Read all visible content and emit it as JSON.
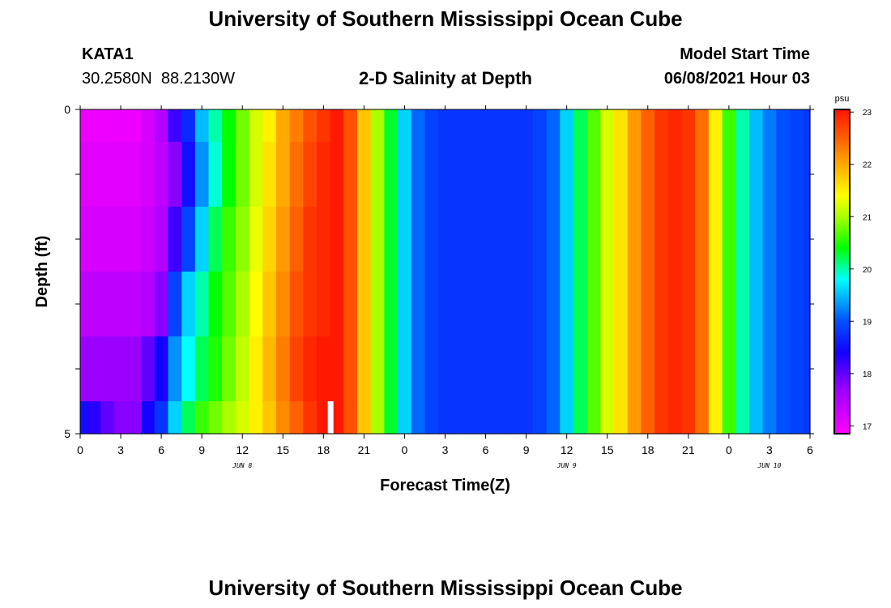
{
  "header": {
    "title": "University of Southern Mississippi Ocean Cube",
    "station": "KATA1",
    "coords": "30.2580N  88.2130W",
    "subtitle": "2-D Salinity at Depth",
    "model_label": "Model Start Time",
    "model_time": "06/08/2021 Hour 03"
  },
  "footer": {
    "title": "University of Southern Mississippi Ocean Cube"
  },
  "chart_data": {
    "type": "heatmap",
    "title": "2-D Salinity at Depth",
    "xlabel": "Forecast Time(Z)",
    "ylabel": "Depth (ft)",
    "x_start_hour": 0,
    "x_end_hour": 54,
    "x_step_hours": 1,
    "x_ticks": [
      {
        "h": 0,
        "label": "0"
      },
      {
        "h": 3,
        "label": "3"
      },
      {
        "h": 6,
        "label": "6"
      },
      {
        "h": 9,
        "label": "9"
      },
      {
        "h": 12,
        "label": "12"
      },
      {
        "h": 15,
        "label": "15"
      },
      {
        "h": 18,
        "label": "18"
      },
      {
        "h": 21,
        "label": "21"
      },
      {
        "h": 24,
        "label": "0"
      },
      {
        "h": 27,
        "label": "3"
      },
      {
        "h": 30,
        "label": "6"
      },
      {
        "h": 33,
        "label": "9"
      },
      {
        "h": 36,
        "label": "12"
      },
      {
        "h": 39,
        "label": "15"
      },
      {
        "h": 42,
        "label": "18"
      },
      {
        "h": 45,
        "label": "21"
      },
      {
        "h": 48,
        "label": "0"
      },
      {
        "h": 51,
        "label": "3"
      },
      {
        "h": 54,
        "label": "6"
      }
    ],
    "date_labels": [
      {
        "h": 12,
        "label": "JUN 8"
      },
      {
        "h": 36,
        "label": "JUN 9"
      },
      {
        "h": 51,
        "label": "JUN 10"
      }
    ],
    "ylim": [
      0,
      5
    ],
    "y_tick_labels": [
      {
        "v": 0,
        "label": "0"
      },
      {
        "v": 5,
        "label": "5"
      }
    ],
    "y_ticks_minor": [
      1,
      2,
      3,
      4
    ],
    "depth_rows": [
      0,
      1,
      2,
      3,
      4,
      5
    ],
    "row_boundaries": [
      0,
      0.5,
      1.5,
      2.5,
      3.5,
      4.5,
      5
    ],
    "salinity_psu": [
      [
        17.0,
        17.0,
        17.0,
        17.0,
        17.0,
        17.2,
        17.5,
        18.2,
        18.7,
        19.5,
        20.0,
        20.4,
        20.8,
        21.2,
        21.5,
        22.0,
        22.3,
        22.6,
        22.8,
        23.0,
        22.6,
        21.8,
        21.0,
        20.3,
        19.6,
        19.1,
        18.9,
        18.8,
        18.8,
        18.8,
        18.8,
        18.8,
        18.8,
        18.8,
        18.9,
        19.1,
        19.6,
        20.2,
        20.7,
        21.2,
        21.6,
        22.1,
        22.5,
        22.8,
        22.9,
        22.8,
        22.4,
        21.5,
        20.6,
        20.0,
        19.5,
        19.2,
        19.0,
        18.9,
        18.8
      ],
      [
        17.1,
        17.1,
        17.1,
        17.1,
        17.1,
        17.2,
        17.4,
        17.8,
        18.5,
        19.3,
        19.9,
        20.4,
        20.8,
        21.2,
        21.6,
        22.0,
        22.4,
        22.7,
        22.9,
        23.0,
        22.6,
        21.8,
        21.0,
        20.3,
        19.6,
        19.1,
        18.9,
        18.8,
        18.8,
        18.8,
        18.8,
        18.8,
        18.8,
        18.8,
        18.9,
        19.1,
        19.6,
        20.2,
        20.7,
        21.2,
        21.6,
        22.1,
        22.5,
        22.8,
        22.9,
        22.8,
        22.4,
        21.5,
        20.6,
        20.0,
        19.5,
        19.2,
        19.0,
        18.9,
        18.8
      ],
      [
        17.2,
        17.2,
        17.2,
        17.2,
        17.2,
        17.3,
        17.5,
        18.2,
        18.9,
        19.6,
        20.2,
        20.6,
        20.9,
        21.3,
        21.7,
        22.1,
        22.5,
        22.8,
        22.9,
        23.0,
        22.6,
        21.8,
        21.0,
        20.3,
        19.6,
        19.1,
        18.9,
        18.8,
        18.8,
        18.8,
        18.8,
        18.8,
        18.8,
        18.8,
        18.9,
        19.1,
        19.6,
        20.2,
        20.7,
        21.2,
        21.6,
        22.1,
        22.5,
        22.8,
        22.9,
        22.8,
        22.4,
        21.5,
        20.6,
        20.0,
        19.5,
        19.2,
        19.0,
        18.9,
        18.8
      ],
      [
        17.4,
        17.4,
        17.4,
        17.4,
        17.4,
        17.5,
        17.8,
        18.9,
        19.6,
        20.0,
        20.4,
        20.7,
        21.0,
        21.4,
        21.8,
        22.2,
        22.6,
        22.8,
        22.9,
        23.0,
        22.6,
        21.8,
        21.0,
        20.3,
        19.6,
        19.1,
        18.9,
        18.8,
        18.8,
        18.8,
        18.8,
        18.8,
        18.8,
        18.8,
        18.9,
        19.1,
        19.6,
        20.2,
        20.7,
        21.2,
        21.6,
        22.1,
        22.5,
        22.8,
        22.9,
        22.8,
        22.4,
        21.5,
        20.6,
        20.0,
        19.5,
        19.2,
        19.0,
        18.9,
        18.8
      ],
      [
        17.7,
        17.7,
        17.7,
        17.7,
        17.7,
        18.0,
        18.4,
        19.3,
        19.8,
        20.2,
        20.5,
        20.8,
        21.1,
        21.5,
        21.9,
        22.3,
        22.7,
        22.9,
        23.0,
        23.0,
        22.6,
        21.8,
        21.0,
        20.3,
        19.6,
        19.1,
        18.9,
        18.8,
        18.8,
        18.8,
        18.8,
        18.8,
        18.8,
        18.8,
        18.9,
        19.1,
        19.6,
        20.2,
        20.7,
        21.2,
        21.6,
        22.1,
        22.5,
        22.8,
        22.9,
        22.8,
        22.4,
        21.5,
        20.6,
        20.0,
        19.5,
        19.2,
        19.0,
        18.9,
        18.8
      ],
      [
        18.5,
        18.3,
        18.0,
        17.8,
        17.8,
        18.4,
        18.8,
        19.6,
        20.2,
        20.6,
        20.8,
        21.0,
        21.2,
        21.5,
        21.8,
        22.2,
        22.5,
        22.8,
        23.0,
        23.0,
        22.6,
        21.8,
        21.0,
        20.3,
        19.6,
        19.1,
        18.9,
        18.8,
        18.8,
        18.8,
        18.8,
        18.8,
        18.8,
        18.8,
        18.9,
        19.1,
        19.6,
        20.2,
        20.7,
        21.2,
        21.6,
        22.1,
        22.5,
        22.8,
        22.9,
        22.8,
        22.4,
        21.5,
        20.6,
        20.0,
        19.5,
        19.2,
        19.0,
        18.9,
        18.8
      ]
    ],
    "current_time_hour": 18.5,
    "colorbar": {
      "unit": "psu",
      "min": 16.85,
      "max": 23.05,
      "tick_values": [
        17,
        18,
        19,
        20,
        21,
        22,
        23
      ],
      "tick_labels": [
        "17",
        "18",
        "19",
        "20",
        "21",
        "22",
        "23"
      ],
      "stops": [
        {
          "v": 16.85,
          "color": "#ff00ff"
        },
        {
          "v": 17.7,
          "color": "#9b00ff"
        },
        {
          "v": 18.4,
          "color": "#1400ff"
        },
        {
          "v": 19.0,
          "color": "#0050ff"
        },
        {
          "v": 19.8,
          "color": "#00ffff"
        },
        {
          "v": 20.4,
          "color": "#00ff00"
        },
        {
          "v": 21.0,
          "color": "#aaff00"
        },
        {
          "v": 21.4,
          "color": "#ffff00"
        },
        {
          "v": 22.0,
          "color": "#ffaa00"
        },
        {
          "v": 22.5,
          "color": "#ff6000"
        },
        {
          "v": 23.05,
          "color": "#ff1200"
        }
      ]
    }
  }
}
